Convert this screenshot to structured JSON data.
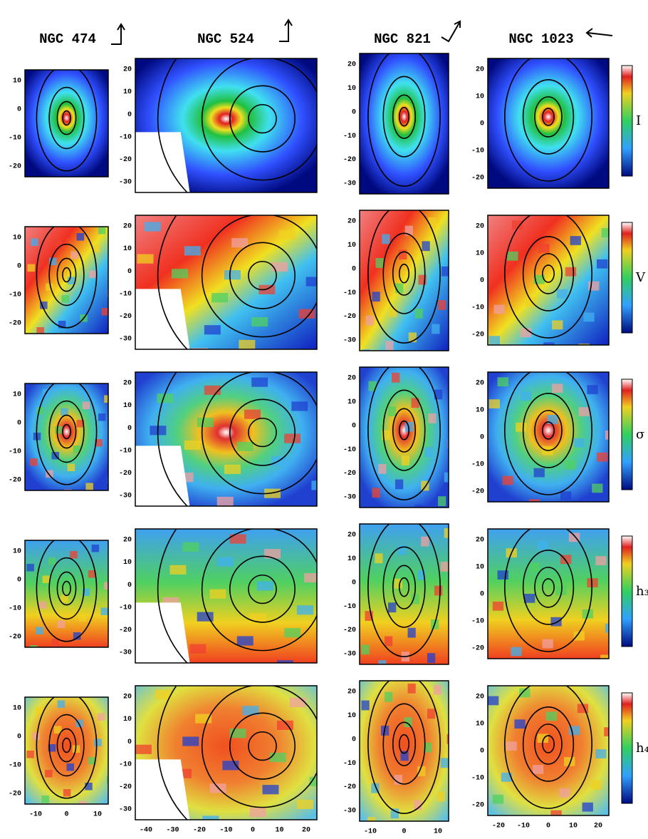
{
  "columns": [
    {
      "title": "NGC 474",
      "yticks": [
        "10",
        "0",
        "-10",
        "-20"
      ],
      "xticks": [
        "-10",
        "0",
        "10"
      ]
    },
    {
      "title": "NGC 524",
      "yticks": [
        "20",
        "10",
        "0",
        "-10",
        "-20",
        "-30"
      ],
      "xticks": [
        "-40",
        "-30",
        "-20",
        "-10",
        "0",
        "10",
        "20"
      ]
    },
    {
      "title": "NGC 821",
      "yticks": [
        "20",
        "10",
        "0",
        "-10",
        "-20",
        "-30"
      ],
      "xticks": [
        "-10",
        "0",
        "10"
      ]
    },
    {
      "title": "NGC 1023",
      "yticks": [
        "20",
        "10",
        "0",
        "-10",
        "-20"
      ],
      "xticks": [
        "-20",
        "-10",
        "0",
        "10",
        "20"
      ]
    }
  ],
  "rows": [
    {
      "label": "I"
    },
    {
      "label": "V"
    },
    {
      "label": "σ"
    },
    {
      "label": "h₃"
    },
    {
      "label": "h₄"
    }
  ]
}
